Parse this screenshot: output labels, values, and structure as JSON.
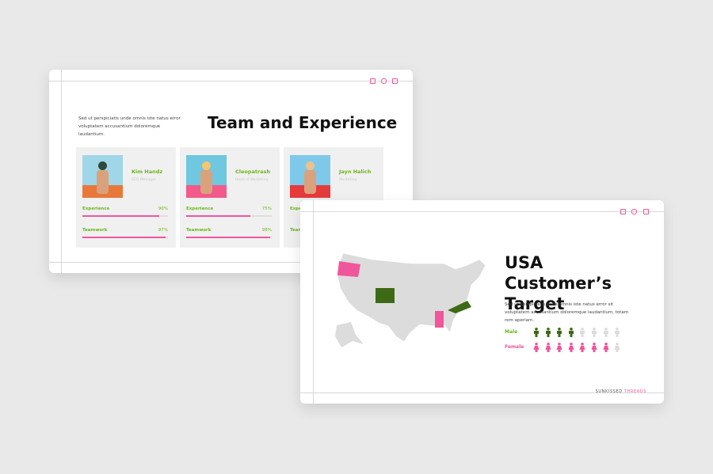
{
  "slide_team": {
    "title": "Team and Experience",
    "text": "Sed ut perspiciatis unde omnis iste natus error voluptatem accusantium doloremque laudantium.",
    "members": [
      {
        "name": "Kim Handz",
        "role": "CEO Manager",
        "skills": [
          {
            "name": "Experience",
            "value": 90,
            "value_label": "90%"
          },
          {
            "name": "Teamwork",
            "value": 97,
            "value_label": "97%"
          }
        ]
      },
      {
        "name": "Cleopatrash",
        "role": "Head of Marketing",
        "skills": [
          {
            "name": "Experience",
            "value": 75,
            "value_label": "75%"
          },
          {
            "name": "Teamwork",
            "value": 98,
            "value_label": "98%"
          }
        ]
      },
      {
        "name": "Jayn Halich",
        "role": "Marketing",
        "skills": [
          {
            "name": "Experience"
          },
          {
            "name": "Teamwork"
          }
        ]
      }
    ]
  },
  "slide_target": {
    "title": "USA Customer’s Target",
    "text": "Sed ut perspiciatis unde omnis iste natus error sit voluptatem accusantium doloremque laudantium, totam rem aperiam.",
    "groups": [
      {
        "label": "Male",
        "filled": 4,
        "total": 8,
        "color": "#3d6a14"
      },
      {
        "label": "Female",
        "filled": 7,
        "total": 8,
        "color": "#f0569c"
      }
    ],
    "brand": [
      "SUNKISSED",
      "THREADS"
    ]
  }
}
